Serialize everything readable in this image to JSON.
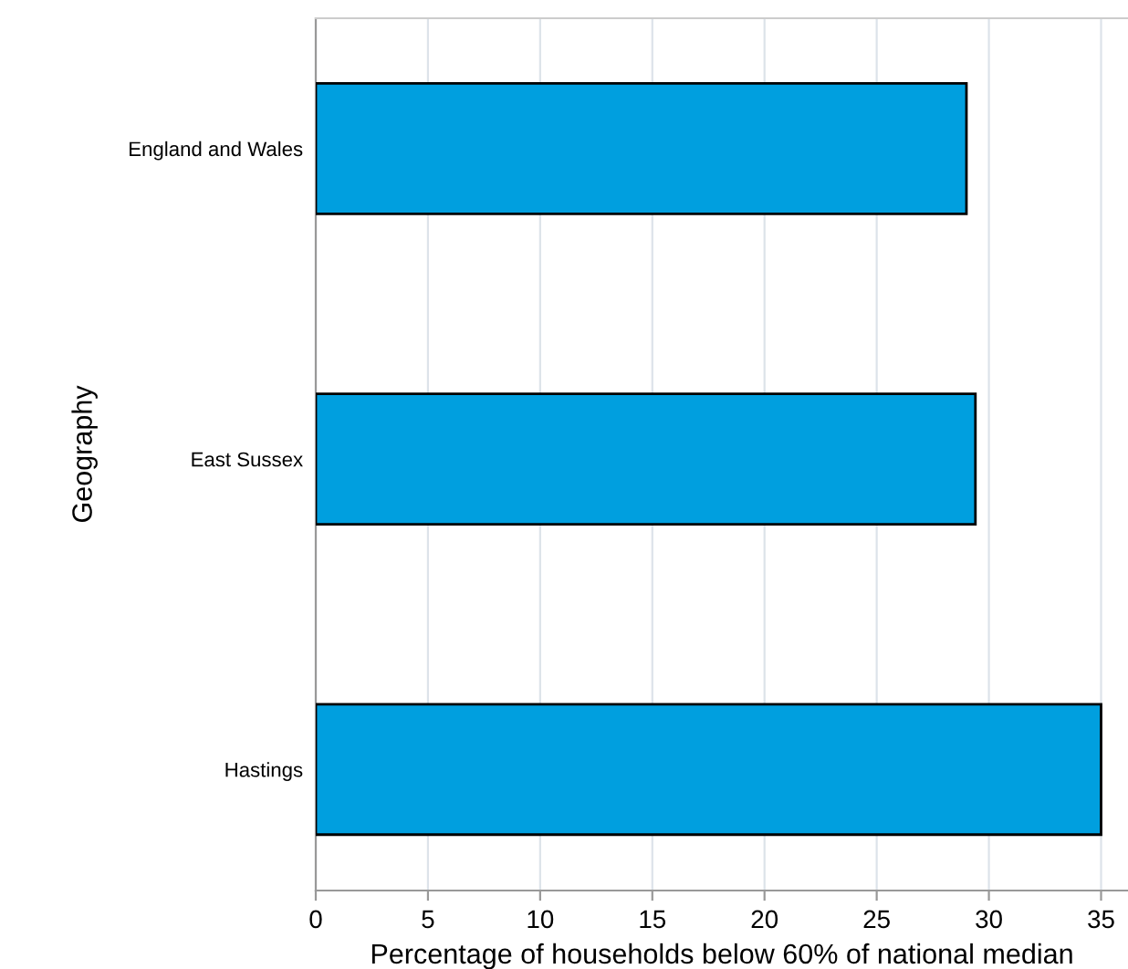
{
  "chart_data": {
    "type": "bar",
    "orientation": "horizontal",
    "categories": [
      "England and Wales",
      "East Sussex",
      "Hastings"
    ],
    "values": [
      29.0,
      29.4,
      35.0
    ],
    "color": "#009fdf",
    "xlabel": "Percentage of households below 60% of national median",
    "ylabel": "Geography",
    "xlim": [
      0,
      36.2
    ],
    "xticks": [
      0,
      5,
      10,
      15,
      20,
      25,
      30,
      35
    ],
    "grid": "x"
  }
}
